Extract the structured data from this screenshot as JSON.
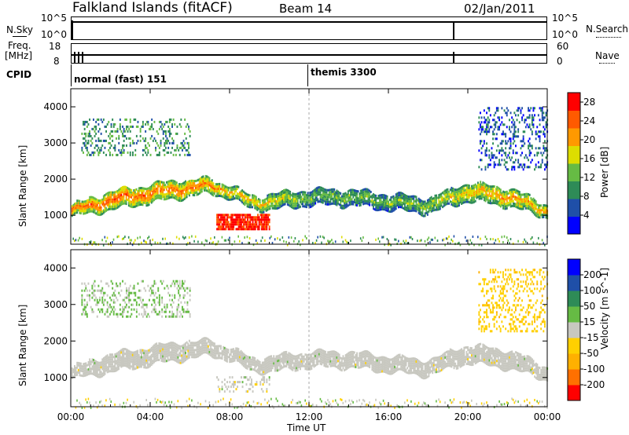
{
  "header": {
    "station": "Falkland Islands (fitACF)",
    "beam": "Beam 14",
    "date": "02/Jan/2011"
  },
  "top_panels": {
    "nsky_label": "N.Sky",
    "nsky_ticks": [
      "10^5",
      "10^0"
    ],
    "nsearch_label": "N.Search",
    "nsearch_ticks": [
      "10^5",
      "10^0"
    ],
    "freq_label_1": "Freq.",
    "freq_label_2": "[MHz]",
    "freq_ticks": [
      "18",
      "8"
    ],
    "nave_label": "Nave",
    "nave_ticks": [
      "60",
      "0"
    ],
    "cpid_label": "CPID",
    "cpid_segments": [
      {
        "name": "normal (fast) 151",
        "start_hour": 0
      },
      {
        "name": "themis 3300",
        "start_hour": 12
      }
    ]
  },
  "chart_data": [
    {
      "type": "heatmap",
      "title": "",
      "xlabel": "Time UT",
      "ylabel": "Slant Range [km]",
      "ylim": [
        200,
        4500
      ],
      "xlim": [
        0,
        24
      ],
      "x_ticks": [
        "00:00",
        "04:00",
        "08:00",
        "12:00",
        "16:00",
        "20:00",
        "00:00"
      ],
      "y_ticks": [
        "1000",
        "2000",
        "3000",
        "4000"
      ],
      "colorbar": {
        "label": "Power [dB]",
        "ticks": [
          "28",
          "24",
          "20",
          "16",
          "12",
          "8",
          "4"
        ],
        "range": [
          0,
          30
        ],
        "colors": [
          "#0000ff",
          "#1f4fa8",
          "#2e8b57",
          "#66bb44",
          "#dddd00",
          "#ff9900",
          "#ff5a00",
          "#ff0000"
        ]
      },
      "bands": [
        {
          "hour": 0.0,
          "center_km": 1150,
          "width_km": 300,
          "power": 22
        },
        {
          "hour": 2.0,
          "center_km": 1450,
          "width_km": 500,
          "power": 23
        },
        {
          "hour": 4.0,
          "center_km": 1650,
          "width_km": 500,
          "power": 22
        },
        {
          "hour": 6.0,
          "center_km": 1800,
          "width_km": 450,
          "power": 22
        },
        {
          "hour": 7.0,
          "center_km": 1850,
          "width_km": 400,
          "power": 21
        },
        {
          "hour": 8.0,
          "center_km": 1700,
          "width_km": 350,
          "power": 18
        },
        {
          "hour": 9.0,
          "center_km": 1400,
          "width_km": 350,
          "power": 18
        },
        {
          "hour": 10.0,
          "center_km": 1400,
          "width_km": 400,
          "power": 17
        },
        {
          "hour": 12.0,
          "center_km": 1550,
          "width_km": 450,
          "power": 12
        },
        {
          "hour": 14.0,
          "center_km": 1550,
          "width_km": 450,
          "power": 12
        },
        {
          "hour": 16.0,
          "center_km": 1400,
          "width_km": 400,
          "power": 12
        },
        {
          "hour": 18.0,
          "center_km": 1300,
          "width_km": 400,
          "power": 14
        },
        {
          "hour": 20.0,
          "center_km": 1700,
          "width_km": 500,
          "power": 18
        },
        {
          "hour": 22.0,
          "center_km": 1550,
          "width_km": 500,
          "power": 20
        },
        {
          "hour": 24.0,
          "center_km": 1150,
          "width_km": 350,
          "power": 18
        }
      ],
      "patches": [
        {
          "hour_start": 7.3,
          "hour_end": 10.0,
          "range_start": 650,
          "range_end": 1050,
          "power": 28
        },
        {
          "hour_start": 0.5,
          "hour_end": 6.0,
          "range_start": 2700,
          "range_end": 3700,
          "power": 10
        },
        {
          "hour_start": 20.5,
          "hour_end": 24.0,
          "range_start": 2300,
          "range_end": 4000,
          "power": 6
        }
      ]
    },
    {
      "type": "heatmap",
      "title": "",
      "xlabel": "Time UT",
      "ylabel": "Slant Range [km]",
      "ylim": [
        200,
        4500
      ],
      "xlim": [
        0,
        24
      ],
      "x_ticks": [
        "00:00",
        "04:00",
        "08:00",
        "12:00",
        "16:00",
        "20:00",
        "00:00"
      ],
      "y_ticks": [
        "1000",
        "2000",
        "3000",
        "4000"
      ],
      "colorbar": {
        "label": "Velocity [m s^-1]",
        "ticks": [
          "200",
          "100",
          "50",
          "15",
          "-15",
          "-50",
          "-100",
          "-200"
        ],
        "range": [
          -250,
          250
        ],
        "colors": [
          "#ff0000",
          "#ff7000",
          "#ffb000",
          "#ffd000",
          "#c8c8c0",
          "#66bb44",
          "#2e8b57",
          "#1f4fa8",
          "#0000ff"
        ]
      },
      "ground_scatter_color": "#c8c8c0",
      "bands": [
        {
          "hour": 0.0,
          "center_km": 1150,
          "width_km": 300,
          "velocity": 0
        },
        {
          "hour": 2.0,
          "center_km": 1450,
          "width_km": 500,
          "velocity": 0
        },
        {
          "hour": 4.0,
          "center_km": 1650,
          "width_km": 500,
          "velocity": 0
        },
        {
          "hour": 6.0,
          "center_km": 1800,
          "width_km": 450,
          "velocity": 0
        },
        {
          "hour": 7.0,
          "center_km": 1850,
          "width_km": 400,
          "velocity": 0
        },
        {
          "hour": 8.0,
          "center_km": 1700,
          "width_km": 350,
          "velocity": 0
        },
        {
          "hour": 9.0,
          "center_km": 1400,
          "width_km": 350,
          "velocity": 0
        },
        {
          "hour": 10.0,
          "center_km": 1400,
          "width_km": 400,
          "velocity": 0
        },
        {
          "hour": 12.0,
          "center_km": 1550,
          "width_km": 450,
          "velocity": 0
        },
        {
          "hour": 14.0,
          "center_km": 1550,
          "width_km": 450,
          "velocity": 0
        },
        {
          "hour": 16.0,
          "center_km": 1400,
          "width_km": 400,
          "velocity": 0
        },
        {
          "hour": 18.0,
          "center_km": 1300,
          "width_km": 400,
          "velocity": 0
        },
        {
          "hour": 20.0,
          "center_km": 1700,
          "width_km": 500,
          "velocity": 0
        },
        {
          "hour": 22.0,
          "center_km": 1550,
          "width_km": 500,
          "velocity": 0
        },
        {
          "hour": 24.0,
          "center_km": 1150,
          "width_km": 350,
          "velocity": 0
        }
      ],
      "patches": [
        {
          "hour_start": 7.3,
          "hour_end": 10.0,
          "range_start": 650,
          "range_end": 1050,
          "velocity": 0
        },
        {
          "hour_start": 0.5,
          "hour_end": 6.0,
          "range_start": 2700,
          "range_end": 3700,
          "velocity": 30
        },
        {
          "hour_start": 20.5,
          "hour_end": 24.0,
          "range_start": 2300,
          "range_end": 4000,
          "velocity": -60
        }
      ]
    }
  ]
}
